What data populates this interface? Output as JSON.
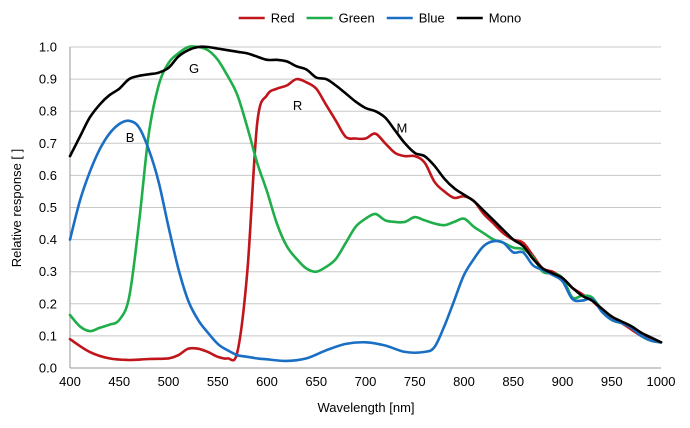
{
  "chart_data": {
    "type": "line",
    "xlabel": "Wavelength [nm]",
    "ylabel": "Relative response [ ]",
    "xlim": [
      400,
      1000
    ],
    "ylim": [
      0,
      1.0
    ],
    "x_ticks": [
      "400",
      "450",
      "500",
      "550",
      "600",
      "650",
      "700",
      "750",
      "800",
      "850",
      "900",
      "950",
      "1000"
    ],
    "y_ticks": [
      "0.0",
      "0.1",
      "0.2",
      "0.3",
      "0.4",
      "0.5",
      "0.6",
      "0.7",
      "0.8",
      "0.9",
      "1.0"
    ],
    "grid": "horizontal",
    "legend_position": "top",
    "series": [
      {
        "name": "Red",
        "color": "#c0151b",
        "x": [
          400,
          420,
          440,
          460,
          480,
          500,
          510,
          520,
          530,
          540,
          550,
          560,
          570,
          580,
          590,
          600,
          610,
          620,
          630,
          640,
          650,
          660,
          670,
          680,
          690,
          700,
          710,
          720,
          730,
          740,
          750,
          760,
          770,
          780,
          790,
          800,
          810,
          820,
          830,
          840,
          850,
          860,
          870,
          880,
          890,
          900,
          910,
          920,
          930,
          940,
          950,
          960,
          970,
          980,
          990,
          1000
        ],
        "y": [
          0.09,
          0.05,
          0.03,
          0.025,
          0.028,
          0.03,
          0.04,
          0.06,
          0.06,
          0.05,
          0.035,
          0.03,
          0.05,
          0.3,
          0.76,
          0.85,
          0.87,
          0.88,
          0.9,
          0.89,
          0.87,
          0.82,
          0.77,
          0.72,
          0.715,
          0.715,
          0.73,
          0.7,
          0.67,
          0.66,
          0.66,
          0.64,
          0.58,
          0.55,
          0.53,
          0.535,
          0.52,
          0.48,
          0.45,
          0.42,
          0.4,
          0.39,
          0.35,
          0.31,
          0.3,
          0.28,
          0.25,
          0.23,
          0.21,
          0.18,
          0.16,
          0.14,
          0.12,
          0.1,
          0.09,
          0.08
        ]
      },
      {
        "name": "Green",
        "color": "#1fae49",
        "x": [
          400,
          410,
          420,
          430,
          440,
          450,
          460,
          470,
          480,
          490,
          500,
          510,
          520,
          530,
          540,
          550,
          560,
          570,
          580,
          590,
          600,
          610,
          620,
          630,
          640,
          650,
          660,
          670,
          680,
          690,
          700,
          710,
          720,
          730,
          740,
          750,
          760,
          770,
          780,
          790,
          800,
          810,
          820,
          830,
          840,
          850,
          860,
          870,
          880,
          890,
          900,
          910,
          920,
          930,
          940,
          950,
          960,
          970,
          980,
          990,
          1000
        ],
        "y": [
          0.165,
          0.13,
          0.115,
          0.125,
          0.135,
          0.15,
          0.22,
          0.45,
          0.73,
          0.88,
          0.95,
          0.98,
          1.0,
          1.0,
          0.99,
          0.96,
          0.91,
          0.85,
          0.75,
          0.64,
          0.55,
          0.45,
          0.38,
          0.34,
          0.31,
          0.3,
          0.315,
          0.34,
          0.39,
          0.44,
          0.465,
          0.48,
          0.46,
          0.455,
          0.455,
          0.47,
          0.46,
          0.45,
          0.445,
          0.455,
          0.465,
          0.44,
          0.42,
          0.4,
          0.39,
          0.375,
          0.37,
          0.345,
          0.3,
          0.295,
          0.28,
          0.22,
          0.225,
          0.22,
          0.18,
          0.15,
          0.14,
          0.13,
          0.1,
          0.085,
          0.08
        ]
      },
      {
        "name": "Blue",
        "color": "#1a6fc4",
        "x": [
          400,
          410,
          420,
          430,
          440,
          450,
          460,
          470,
          480,
          490,
          500,
          510,
          520,
          530,
          540,
          550,
          560,
          570,
          580,
          590,
          600,
          620,
          640,
          660,
          680,
          700,
          720,
          740,
          760,
          770,
          780,
          790,
          800,
          810,
          820,
          830,
          840,
          850,
          860,
          870,
          880,
          890,
          900,
          910,
          920,
          930,
          940,
          950,
          960,
          970,
          980,
          990,
          1000
        ],
        "y": [
          0.4,
          0.52,
          0.61,
          0.68,
          0.73,
          0.76,
          0.77,
          0.75,
          0.68,
          0.58,
          0.44,
          0.31,
          0.21,
          0.15,
          0.11,
          0.075,
          0.055,
          0.04,
          0.035,
          0.03,
          0.027,
          0.022,
          0.03,
          0.055,
          0.075,
          0.08,
          0.07,
          0.05,
          0.05,
          0.065,
          0.13,
          0.21,
          0.29,
          0.34,
          0.38,
          0.395,
          0.39,
          0.36,
          0.36,
          0.32,
          0.305,
          0.29,
          0.27,
          0.215,
          0.21,
          0.215,
          0.175,
          0.15,
          0.14,
          0.125,
          0.1,
          0.085,
          0.08
        ]
      },
      {
        "name": "Mono",
        "color": "#000000",
        "x": [
          400,
          410,
          420,
          430,
          440,
          450,
          460,
          470,
          480,
          490,
          500,
          510,
          520,
          530,
          540,
          550,
          560,
          570,
          580,
          590,
          600,
          610,
          620,
          630,
          640,
          650,
          660,
          670,
          680,
          690,
          700,
          710,
          720,
          730,
          740,
          750,
          760,
          770,
          780,
          790,
          800,
          810,
          820,
          830,
          840,
          850,
          860,
          870,
          880,
          890,
          900,
          910,
          920,
          930,
          940,
          950,
          960,
          970,
          980,
          990,
          1000
        ],
        "y": [
          0.66,
          0.72,
          0.78,
          0.82,
          0.85,
          0.87,
          0.9,
          0.91,
          0.915,
          0.92,
          0.935,
          0.97,
          0.99,
          1.0,
          1.0,
          0.995,
          0.99,
          0.985,
          0.98,
          0.97,
          0.96,
          0.96,
          0.955,
          0.94,
          0.93,
          0.905,
          0.9,
          0.88,
          0.855,
          0.83,
          0.81,
          0.8,
          0.78,
          0.74,
          0.7,
          0.67,
          0.66,
          0.63,
          0.59,
          0.56,
          0.54,
          0.52,
          0.49,
          0.46,
          0.43,
          0.4,
          0.38,
          0.34,
          0.31,
          0.295,
          0.28,
          0.25,
          0.225,
          0.21,
          0.185,
          0.16,
          0.145,
          0.13,
          0.11,
          0.095,
          0.08
        ]
      }
    ],
    "annotations": [
      {
        "text": "B",
        "x": 461,
        "y": 0.72
      },
      {
        "text": "G",
        "x": 526,
        "y": 0.935
      },
      {
        "text": "R",
        "x": 631,
        "y": 0.82
      },
      {
        "text": "M",
        "x": 737,
        "y": 0.75
      }
    ]
  }
}
